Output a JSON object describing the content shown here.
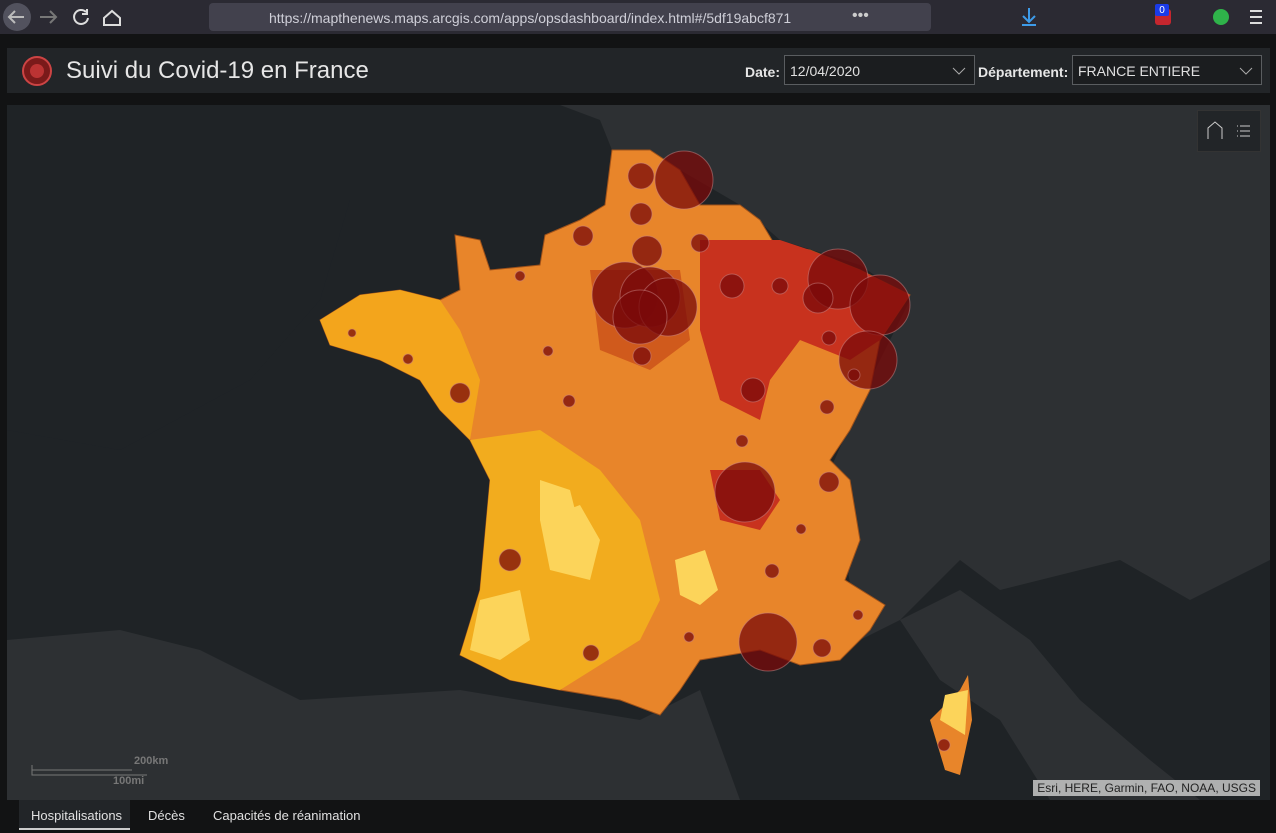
{
  "browser": {
    "url": "https://mapthenews.maps.arcgis.com/apps/opsdashboard/index.html#/5df19abcf871",
    "badge": 0
  },
  "header": {
    "title": "Suivi du Covid-19 en France",
    "date_label": "Date:",
    "date_value": "12/04/2020",
    "dept_label": "Département:",
    "dept_value": "FRANCE ENTIERE"
  },
  "map": {
    "scale_km": "200km",
    "scale_mi": "100mi",
    "attribution": "Esri, HERE, Garmin, FAO, NOAA, USGS"
  },
  "tabs": [
    "Hospitalisations",
    "Décès",
    "Capacités de réanimation"
  ]
}
